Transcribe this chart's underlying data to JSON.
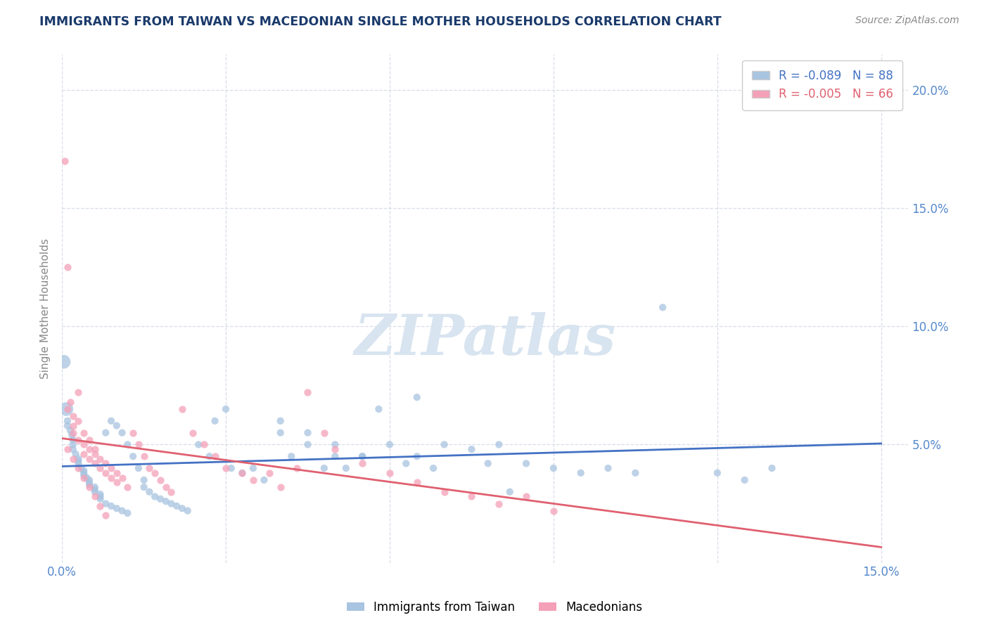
{
  "title": "IMMIGRANTS FROM TAIWAN VS MACEDONIAN SINGLE MOTHER HOUSEHOLDS CORRELATION CHART",
  "source_text": "Source: ZipAtlas.com",
  "ylabel": "Single Mother Households",
  "legend_label_1": "Immigrants from Taiwan",
  "legend_label_2": "Macedonians",
  "r1": "-0.089",
  "n1": "88",
  "r2": "-0.005",
  "n2": "66",
  "xlim": [
    0.0,
    0.155
  ],
  "ylim": [
    0.0,
    0.215
  ],
  "color_blue": "#a8c4e0",
  "color_pink": "#f4a0b8",
  "color_blue_line": "#4472c4",
  "color_pink_line": "#e06070",
  "watermark_color": "#d8e4f0",
  "title_color": "#1a3a6b",
  "source_color": "#888888",
  "axis_label_color": "#888888",
  "tick_color": "#5588cc",
  "grid_color": "#d8dde8",
  "background_color": "#ffffff",
  "taiwan_x": [
    0.0003,
    0.0008,
    0.001,
    0.001,
    0.0015,
    0.0018,
    0.002,
    0.002,
    0.002,
    0.0025,
    0.003,
    0.003,
    0.003,
    0.0035,
    0.004,
    0.004,
    0.004,
    0.0045,
    0.005,
    0.005,
    0.005,
    0.006,
    0.006,
    0.006,
    0.007,
    0.007,
    0.007,
    0.008,
    0.008,
    0.009,
    0.009,
    0.01,
    0.01,
    0.011,
    0.011,
    0.012,
    0.012,
    0.013,
    0.014,
    0.015,
    0.015,
    0.016,
    0.017,
    0.018,
    0.019,
    0.02,
    0.021,
    0.022,
    0.023,
    0.025,
    0.027,
    0.028,
    0.03,
    0.031,
    0.033,
    0.035,
    0.037,
    0.04,
    0.042,
    0.045,
    0.048,
    0.05,
    0.052,
    0.055,
    0.06,
    0.063,
    0.065,
    0.068,
    0.07,
    0.075,
    0.078,
    0.08,
    0.085,
    0.09,
    0.095,
    0.1,
    0.105,
    0.11,
    0.12,
    0.125,
    0.04,
    0.045,
    0.05,
    0.055,
    0.058,
    0.065,
    0.082,
    0.13
  ],
  "taiwan_y": [
    0.085,
    0.065,
    0.06,
    0.058,
    0.056,
    0.054,
    0.052,
    0.05,
    0.048,
    0.046,
    0.044,
    0.043,
    0.042,
    0.04,
    0.039,
    0.038,
    0.037,
    0.036,
    0.035,
    0.034,
    0.033,
    0.032,
    0.031,
    0.03,
    0.029,
    0.028,
    0.027,
    0.055,
    0.025,
    0.06,
    0.024,
    0.058,
    0.023,
    0.055,
    0.022,
    0.05,
    0.021,
    0.045,
    0.04,
    0.035,
    0.032,
    0.03,
    0.028,
    0.027,
    0.026,
    0.025,
    0.024,
    0.023,
    0.022,
    0.05,
    0.045,
    0.06,
    0.065,
    0.04,
    0.038,
    0.04,
    0.035,
    0.055,
    0.045,
    0.05,
    0.04,
    0.045,
    0.04,
    0.045,
    0.05,
    0.042,
    0.045,
    0.04,
    0.05,
    0.048,
    0.042,
    0.05,
    0.042,
    0.04,
    0.038,
    0.04,
    0.038,
    0.108,
    0.038,
    0.035,
    0.06,
    0.055,
    0.05,
    0.045,
    0.065,
    0.07,
    0.03,
    0.04
  ],
  "macedonian_x": [
    0.0005,
    0.001,
    0.001,
    0.0015,
    0.002,
    0.002,
    0.002,
    0.003,
    0.003,
    0.003,
    0.004,
    0.004,
    0.004,
    0.005,
    0.005,
    0.005,
    0.006,
    0.006,
    0.006,
    0.007,
    0.007,
    0.008,
    0.008,
    0.009,
    0.009,
    0.01,
    0.01,
    0.011,
    0.012,
    0.013,
    0.014,
    0.015,
    0.016,
    0.017,
    0.018,
    0.019,
    0.02,
    0.022,
    0.024,
    0.026,
    0.028,
    0.03,
    0.033,
    0.035,
    0.038,
    0.04,
    0.043,
    0.045,
    0.048,
    0.05,
    0.055,
    0.06,
    0.065,
    0.07,
    0.075,
    0.08,
    0.085,
    0.09,
    0.001,
    0.002,
    0.003,
    0.004,
    0.005,
    0.006,
    0.007,
    0.008
  ],
  "macedonian_y": [
    0.17,
    0.125,
    0.065,
    0.068,
    0.062,
    0.058,
    0.055,
    0.072,
    0.06,
    0.052,
    0.055,
    0.05,
    0.046,
    0.052,
    0.048,
    0.044,
    0.048,
    0.046,
    0.042,
    0.044,
    0.04,
    0.042,
    0.038,
    0.04,
    0.036,
    0.038,
    0.034,
    0.036,
    0.032,
    0.055,
    0.05,
    0.045,
    0.04,
    0.038,
    0.035,
    0.032,
    0.03,
    0.065,
    0.055,
    0.05,
    0.045,
    0.04,
    0.038,
    0.035,
    0.038,
    0.032,
    0.04,
    0.072,
    0.055,
    0.048,
    0.042,
    0.038,
    0.034,
    0.03,
    0.028,
    0.025,
    0.028,
    0.022,
    0.048,
    0.044,
    0.04,
    0.036,
    0.032,
    0.028,
    0.024,
    0.02
  ]
}
